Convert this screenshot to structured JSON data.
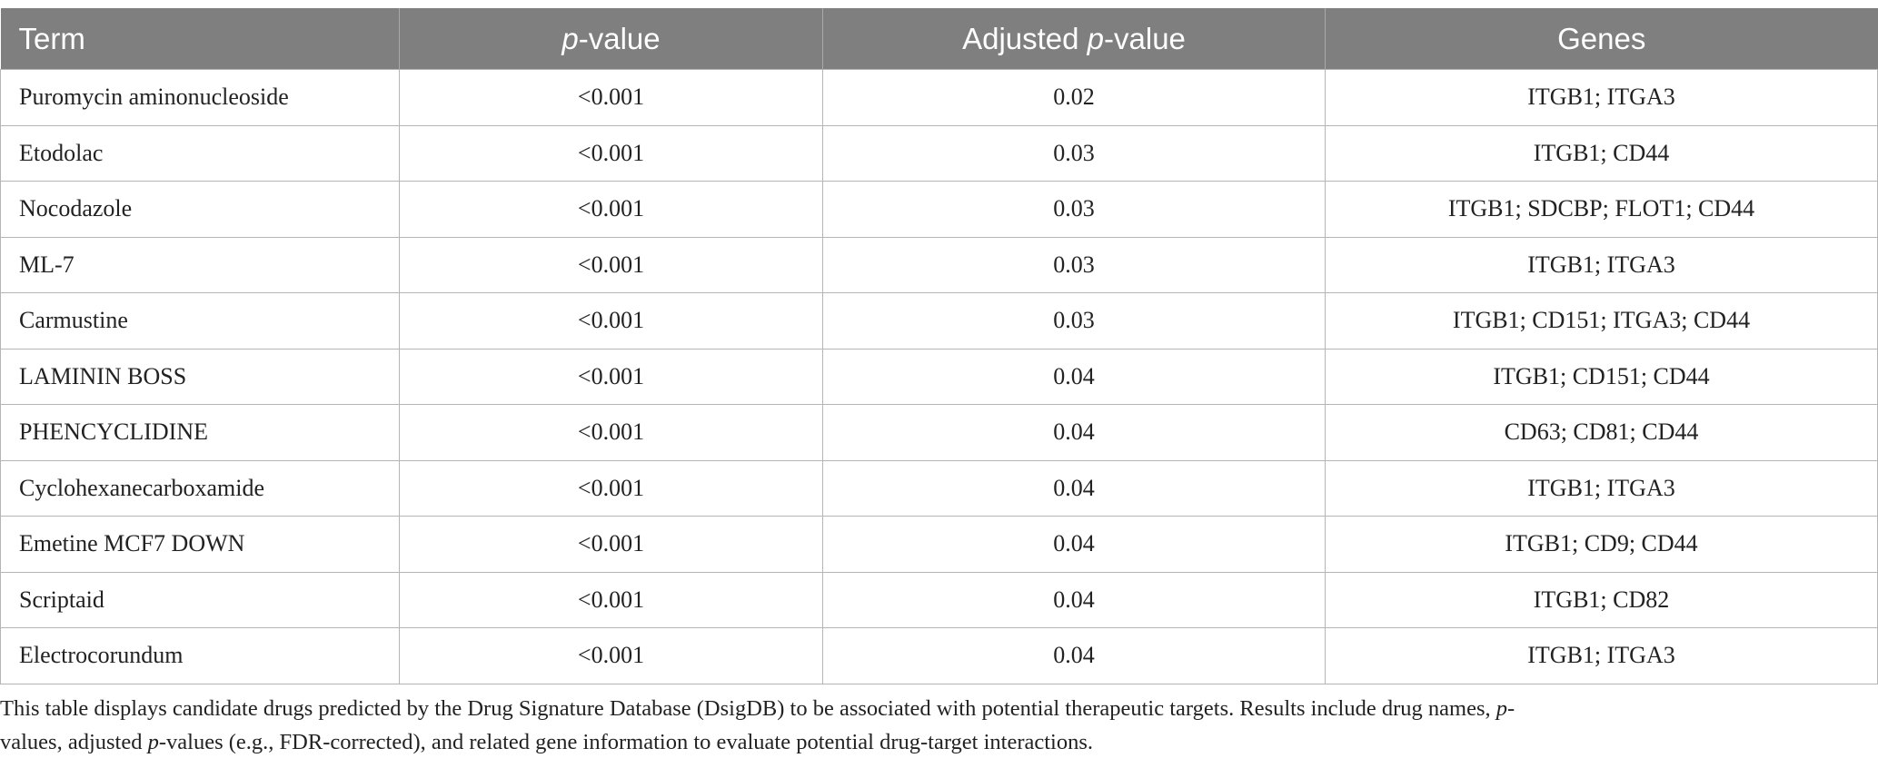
{
  "table": {
    "header": [
      [
        "Term"
      ],
      [
        "p",
        "-value"
      ],
      [
        "Adjusted ",
        "p",
        "-value"
      ],
      [
        "Genes"
      ]
    ],
    "rows": [
      [
        "Puromycin aminonucleoside",
        "<0.001",
        "0.02",
        "ITGB1; ITGA3"
      ],
      [
        "Etodolac",
        "<0.001",
        "0.03",
        "ITGB1; CD44"
      ],
      [
        "Nocodazole",
        "<0.001",
        "0.03",
        "ITGB1; SDCBP; FLOT1; CD44"
      ],
      [
        "ML-7",
        "<0.001",
        "0.03",
        "ITGB1; ITGA3"
      ],
      [
        "Carmustine",
        "<0.001",
        "0.03",
        "ITGB1; CD151; ITGA3; CD44"
      ],
      [
        "LAMININ BOSS",
        "<0.001",
        "0.04",
        "ITGB1; CD151; CD44"
      ],
      [
        "PHENCYCLIDINE",
        "<0.001",
        "0.04",
        "CD63; CD81; CD44"
      ],
      [
        "Cyclohexanecarboxamide",
        "<0.001",
        "0.04",
        "ITGB1; ITGA3"
      ],
      [
        "Emetine MCF7 DOWN",
        "<0.001",
        "0.04",
        "ITGB1; CD9; CD44"
      ],
      [
        "Scriptaid",
        "<0.001",
        "0.04",
        "ITGB1; CD82"
      ],
      [
        "Electrocorundum",
        "<0.001",
        "0.04",
        "ITGB1; ITGA3"
      ]
    ]
  },
  "footnote": [
    "This table displays candidate drugs predicted by the Drug Signature Database (DsigDB) to be associated with potential therapeutic targets. Results include drug names, ",
    "p",
    "-values, adjusted ",
    "p",
    "-values (e.g., FDR-corrected), and related gene information to evaluate potential drug-target interactions."
  ]
}
